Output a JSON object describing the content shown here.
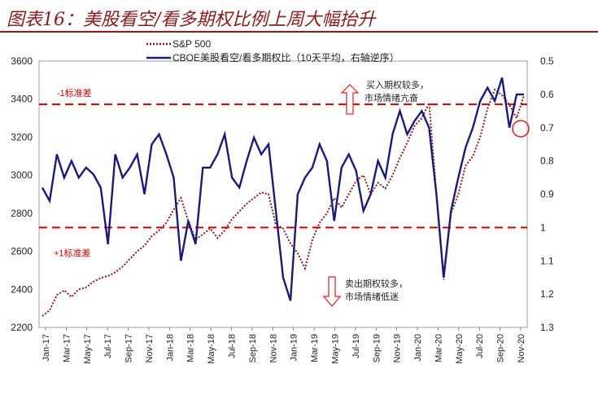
{
  "figure": {
    "title": "图表16：美股看空/看多期权比例上周大幅抬升"
  },
  "legend": [
    {
      "name": "S&P 500",
      "color": "#8B1A1A",
      "style": "dotted"
    },
    {
      "name": "CBOE美股看空/看多期权比（10天平均，右轴逆序）",
      "color": "#1a1a7a",
      "style": "solid"
    }
  ],
  "annotations": {
    "upper_band_label": "-1标准差",
    "lower_band_label": "+1标准差",
    "buy_note_1": "买入期权较多，",
    "buy_note_2": "市场情绪亢奋",
    "sell_note_1": "卖出期权较多，",
    "sell_note_2": "市场情绪低迷"
  },
  "colors": {
    "spx": "#8B1A1A",
    "cboe": "#1a1a7a",
    "band": "#d00000",
    "arrow": "#e02020"
  },
  "chart_data": {
    "type": "line",
    "x_ticks": [
      "Jan-17",
      "Mar-17",
      "May-17",
      "Jul-17",
      "Sep-17",
      "Nov-17",
      "Jan-18",
      "Mar-18",
      "May-18",
      "Jul-18",
      "Sep-18",
      "Nov-18",
      "Jan-19",
      "Mar-19",
      "May-19",
      "Jul-19",
      "Sep-19",
      "Nov-19",
      "Jan-20",
      "Mar-20",
      "May-20",
      "Jul-20",
      "Sep-20",
      "Nov-20"
    ],
    "y_left": {
      "min": 2200,
      "max": 3600,
      "ticks": [
        2200,
        2400,
        2600,
        2800,
        3000,
        3200,
        3400,
        3600
      ]
    },
    "y_right": {
      "min": 0.5,
      "max": 1.3,
      "inverted": true,
      "ticks": [
        "0.5",
        "0.6",
        "0.7",
        "0.8",
        "0.9",
        "1",
        "1.1",
        "1.2",
        "1.3"
      ]
    },
    "bands": [
      {
        "label": "-1标准差",
        "ratio": 0.63
      },
      {
        "label": "+1标准差",
        "ratio": 1.0
      }
    ],
    "series": [
      {
        "name": "S&P 500",
        "axis": "left",
        "points": [
          [
            0,
            2260
          ],
          [
            1,
            2290
          ],
          [
            2,
            2370
          ],
          [
            3,
            2395
          ],
          [
            4,
            2360
          ],
          [
            5,
            2400
          ],
          [
            6,
            2410
          ],
          [
            7,
            2440
          ],
          [
            8,
            2460
          ],
          [
            9,
            2470
          ],
          [
            10,
            2490
          ],
          [
            11,
            2520
          ],
          [
            12,
            2560
          ],
          [
            13,
            2600
          ],
          [
            14,
            2630
          ],
          [
            15,
            2680
          ],
          [
            16,
            2710
          ],
          [
            17,
            2750
          ],
          [
            18,
            2820
          ],
          [
            19,
            2880
          ],
          [
            20,
            2760
          ],
          [
            21,
            2660
          ],
          [
            22,
            2690
          ],
          [
            23,
            2720
          ],
          [
            24,
            2670
          ],
          [
            25,
            2710
          ],
          [
            26,
            2770
          ],
          [
            27,
            2810
          ],
          [
            28,
            2850
          ],
          [
            29,
            2880
          ],
          [
            30,
            2910
          ],
          [
            31,
            2900
          ],
          [
            32,
            2740
          ],
          [
            33,
            2720
          ],
          [
            34,
            2640
          ],
          [
            35,
            2590
          ],
          [
            36,
            2510
          ],
          [
            37,
            2660
          ],
          [
            38,
            2750
          ],
          [
            39,
            2800
          ],
          [
            40,
            2880
          ],
          [
            41,
            2830
          ],
          [
            42,
            2900
          ],
          [
            43,
            2970
          ],
          [
            44,
            3000
          ],
          [
            45,
            2900
          ],
          [
            46,
            2960
          ],
          [
            47,
            2930
          ],
          [
            48,
            3000
          ],
          [
            49,
            3090
          ],
          [
            50,
            3170
          ],
          [
            51,
            3260
          ],
          [
            52,
            3300
          ],
          [
            53,
            3380
          ],
          [
            54,
            2900
          ],
          [
            55,
            2450
          ],
          [
            56,
            2800
          ],
          [
            57,
            2900
          ],
          [
            58,
            3050
          ],
          [
            59,
            3100
          ],
          [
            60,
            3200
          ],
          [
            61,
            3350
          ],
          [
            62,
            3450
          ],
          [
            63,
            3420
          ],
          [
            64,
            3370
          ],
          [
            65,
            3300
          ],
          [
            66,
            3420
          ]
        ]
      },
      {
        "name": "CBOE美股看空/看多期权比（10天平均，右轴逆序）",
        "axis": "right",
        "points": [
          [
            0,
            0.88
          ],
          [
            1,
            0.92
          ],
          [
            2,
            0.78
          ],
          [
            3,
            0.85
          ],
          [
            4,
            0.8
          ],
          [
            5,
            0.85
          ],
          [
            6,
            0.82
          ],
          [
            7,
            0.84
          ],
          [
            8,
            0.88
          ],
          [
            9,
            1.05
          ],
          [
            10,
            0.78
          ],
          [
            11,
            0.85
          ],
          [
            12,
            0.82
          ],
          [
            13,
            0.78
          ],
          [
            14,
            0.9
          ],
          [
            15,
            0.75
          ],
          [
            16,
            0.72
          ],
          [
            17,
            0.78
          ],
          [
            18,
            0.85
          ],
          [
            19,
            1.1
          ],
          [
            20,
            0.98
          ],
          [
            21,
            1.05
          ],
          [
            22,
            0.82
          ],
          [
            23,
            0.82
          ],
          [
            24,
            0.78
          ],
          [
            25,
            0.72
          ],
          [
            26,
            0.85
          ],
          [
            27,
            0.88
          ],
          [
            28,
            0.8
          ],
          [
            29,
            0.73
          ],
          [
            30,
            0.78
          ],
          [
            31,
            0.75
          ],
          [
            32,
            0.95
          ],
          [
            33,
            1.15
          ],
          [
            34,
            1.22
          ],
          [
            35,
            0.9
          ],
          [
            36,
            0.85
          ],
          [
            37,
            0.82
          ],
          [
            38,
            0.75
          ],
          [
            39,
            0.8
          ],
          [
            40,
            0.98
          ],
          [
            41,
            0.82
          ],
          [
            42,
            0.78
          ],
          [
            43,
            0.83
          ],
          [
            44,
            0.95
          ],
          [
            45,
            0.9
          ],
          [
            46,
            0.8
          ],
          [
            47,
            0.85
          ],
          [
            48,
            0.72
          ],
          [
            49,
            0.65
          ],
          [
            50,
            0.72
          ],
          [
            51,
            0.68
          ],
          [
            52,
            0.65
          ],
          [
            53,
            0.7
          ],
          [
            54,
            0.9
          ],
          [
            55,
            1.15
          ],
          [
            56,
            0.95
          ],
          [
            57,
            0.85
          ],
          [
            58,
            0.76
          ],
          [
            59,
            0.7
          ],
          [
            60,
            0.62
          ],
          [
            61,
            0.58
          ],
          [
            62,
            0.62
          ],
          [
            63,
            0.55
          ],
          [
            64,
            0.7
          ],
          [
            65,
            0.6
          ],
          [
            66,
            0.6
          ]
        ]
      }
    ]
  }
}
